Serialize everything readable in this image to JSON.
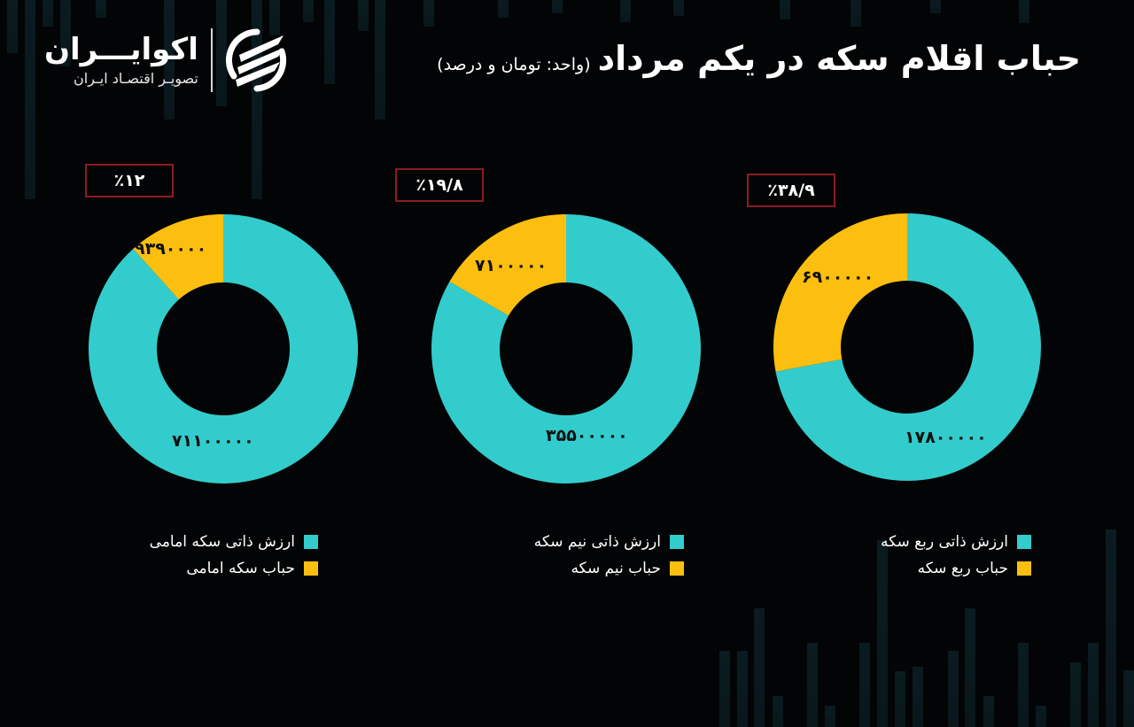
{
  "header": {
    "title": "حباب اقلام سکه در یکم مرداد",
    "unit": "(واحد: تومان و درصد)"
  },
  "logo": {
    "name": "اکوایـــران",
    "tagline": "تصویـر اقتصـاد ایـران"
  },
  "colors": {
    "intrinsic": "#33cccc",
    "bubble": "#fdbf0f",
    "background": "#030405",
    "box_border": "#8e1b24"
  },
  "charts": [
    {
      "id": "emami",
      "bubble_pct_label": "٪۱۲",
      "bubble_value_label": "۹۳۹۰۰۰۰",
      "intrinsic_value_label": "۷۱۱۰۰۰۰۰",
      "legend_intrinsic": "ارزش ذاتی سکه امامی",
      "legend_bubble": "حباب سکه امامی"
    },
    {
      "id": "nim",
      "bubble_pct_label": "٪۱۹/۸",
      "bubble_value_label": "۷۱۰۰۰۰۰",
      "intrinsic_value_label": "۳۵۵۰۰۰۰۰",
      "legend_intrinsic": "ارزش ذاتی نیم سکه",
      "legend_bubble": "حباب نیم سکه"
    },
    {
      "id": "rob",
      "bubble_pct_label": "٪۳۸/۹",
      "bubble_value_label": "۶۹۰۰۰۰۰",
      "intrinsic_value_label": "۱۷۸۰۰۰۰۰",
      "legend_intrinsic": "ارزش ذاتی ربع سکه",
      "legend_bubble": "حباب ربع سکه"
    }
  ],
  "chart_data": [
    {
      "type": "pie",
      "title": "سکه امامی",
      "annotation": "٪۱۲",
      "categories": [
        "ارزش ذاتی سکه امامی",
        "حباب سکه امامی"
      ],
      "values": [
        71100000,
        9390000
      ],
      "colors": [
        "#33cccc",
        "#fdbf0f"
      ],
      "donut": true,
      "bubble_percent": 12
    },
    {
      "type": "pie",
      "title": "نیم سکه",
      "annotation": "٪۱۹/۸",
      "categories": [
        "ارزش ذاتی نیم سکه",
        "حباب نیم سکه"
      ],
      "values": [
        35500000,
        7100000
      ],
      "colors": [
        "#33cccc",
        "#fdbf0f"
      ],
      "donut": true,
      "bubble_percent": 19.8
    },
    {
      "type": "pie",
      "title": "ربع سکه",
      "annotation": "٪۳۸/۹",
      "categories": [
        "ارزش ذاتی ربع سکه",
        "حباب ربع سکه"
      ],
      "values": [
        17800000,
        6900000
      ],
      "colors": [
        "#33cccc",
        "#fdbf0f"
      ],
      "donut": true,
      "bubble_percent": 38.9
    }
  ]
}
